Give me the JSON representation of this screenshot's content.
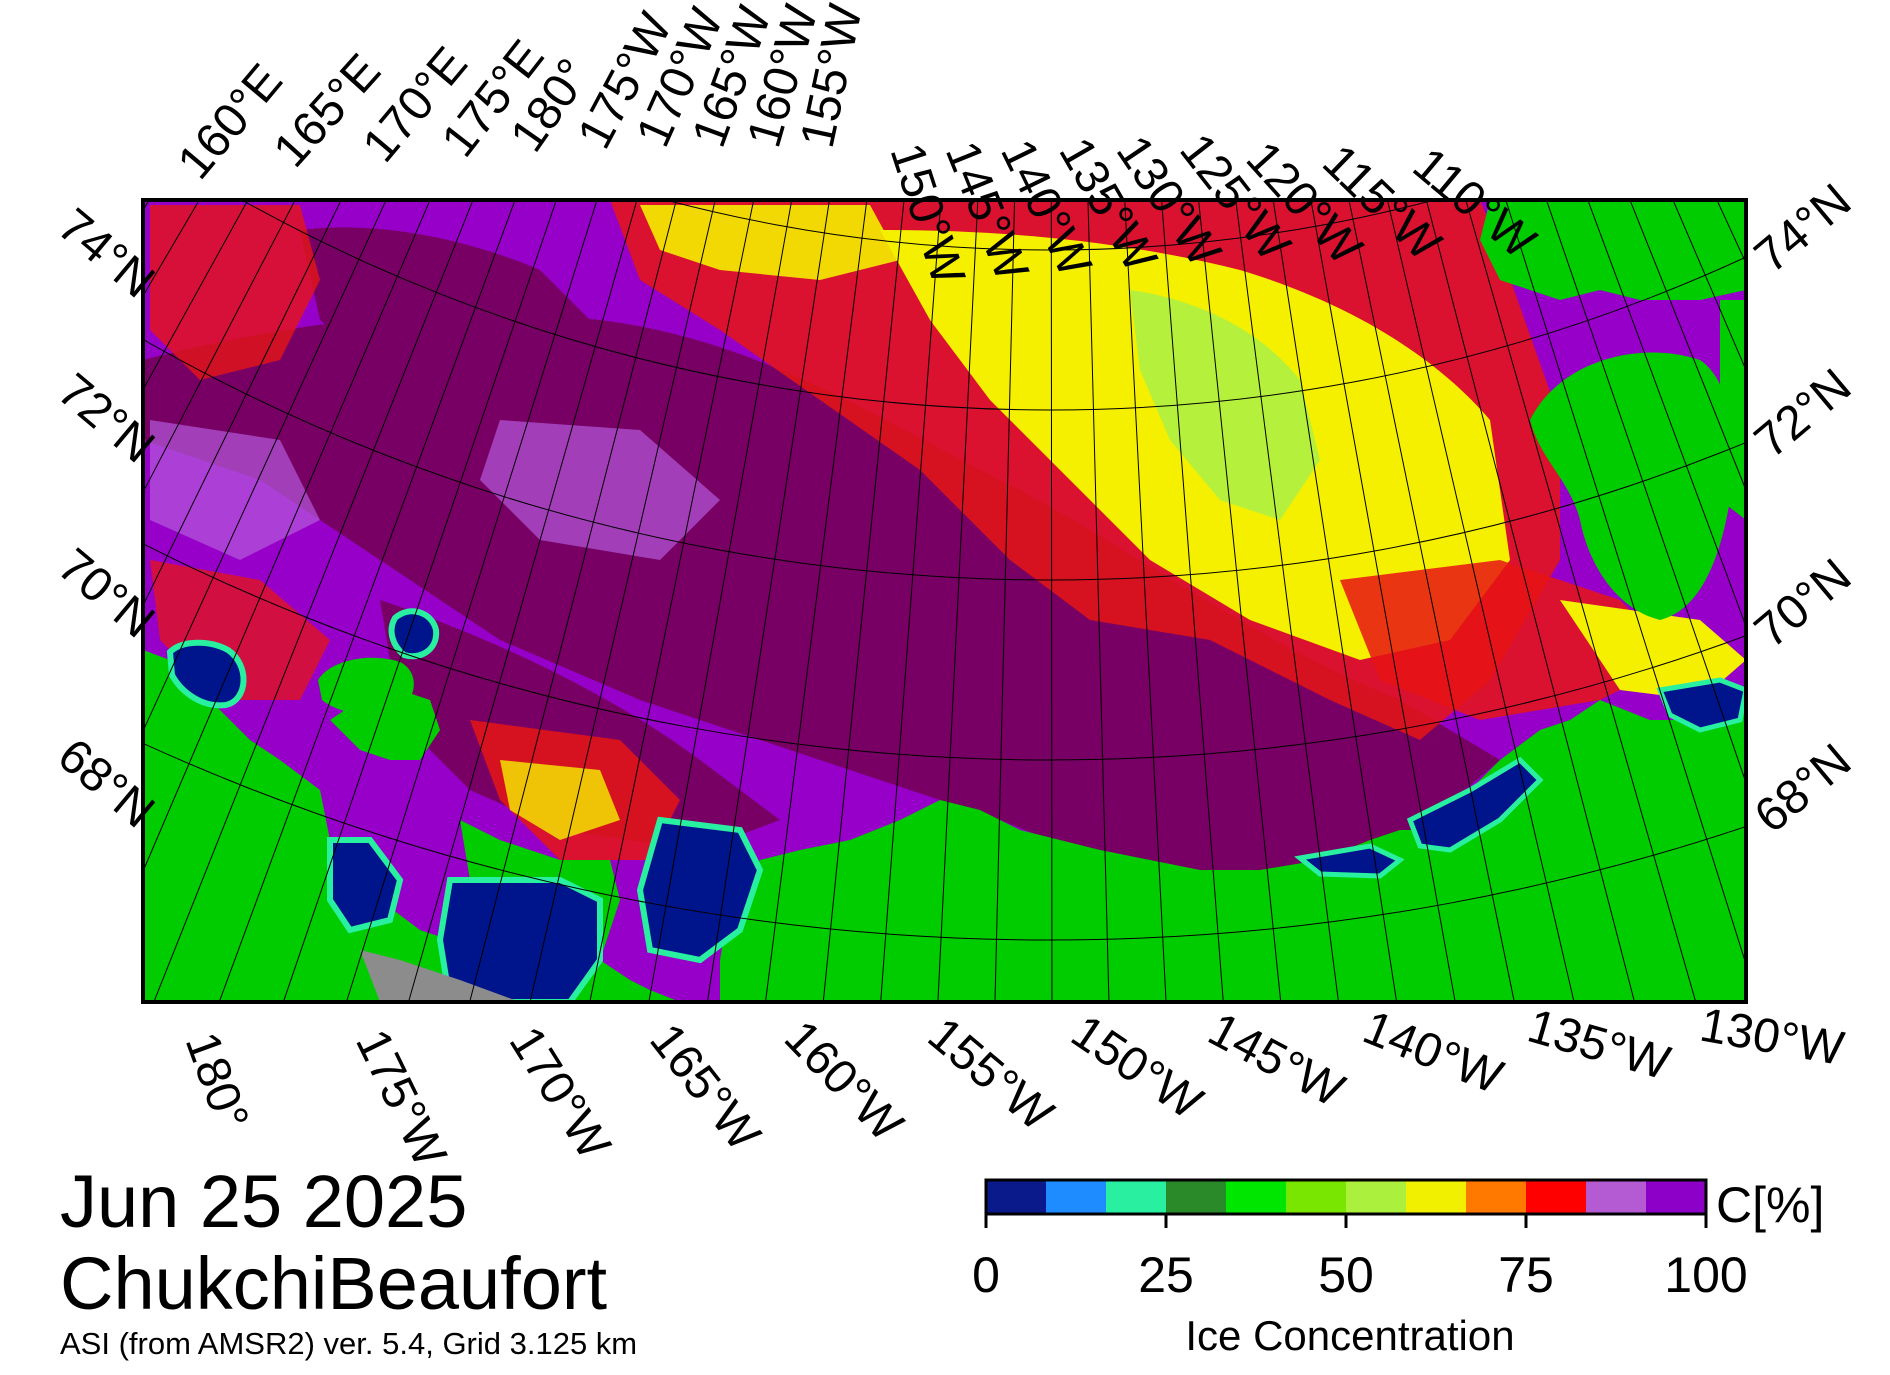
{
  "map": {
    "date": "Jun 25 2025",
    "region": "ChukchiBeaufort",
    "product": "ASI (from AMSR2) ver. 5.4,  Grid 3.125 km",
    "top_lon_labels": [
      "160°E",
      "165°E",
      "170°E",
      "175°E",
      "180°",
      "175°W",
      "170°W",
      "165°W",
      "160°W",
      "155°W",
      "150°W",
      "145°W",
      "140°W",
      "135°W",
      "130°W",
      "125°W",
      "120°W",
      "115°W",
      "110°W"
    ],
    "left_lat_labels": [
      "74°N",
      "72°N",
      "70°N",
      "68°N"
    ],
    "right_lat_labels": [
      "74°N",
      "72°N",
      "70°N",
      "68°N"
    ],
    "bottom_lon_labels": [
      "180°",
      "175°W",
      "170°W",
      "165°W",
      "160°W",
      "155°W",
      "150°W",
      "145°W",
      "140°W",
      "135°W",
      "130°W"
    ]
  },
  "colorbar": {
    "title": "Ice Concentration",
    "unit": "C[%]",
    "tick_labels": [
      "0",
      "25",
      "50",
      "75",
      "100"
    ],
    "colors": [
      "#0a1a8a",
      "#1e8cff",
      "#28f0a0",
      "#2a8a2a",
      "#00e600",
      "#78e600",
      "#aaf03c",
      "#f0f000",
      "#ff7800",
      "#ff0000",
      "#b45ad2",
      "#8c00c8"
    ]
  },
  "palette": {
    "land": "#00cc00",
    "open_water": "#00148c",
    "ice_full": "#780064",
    "ice_high": "#9600c8",
    "ice_lilac": "#b45adc",
    "ice_red": "#f01414",
    "ice_yellow": "#f5f000",
    "ice_greenyellow": "#b4f03c",
    "no_data": "#8c8c8c"
  }
}
